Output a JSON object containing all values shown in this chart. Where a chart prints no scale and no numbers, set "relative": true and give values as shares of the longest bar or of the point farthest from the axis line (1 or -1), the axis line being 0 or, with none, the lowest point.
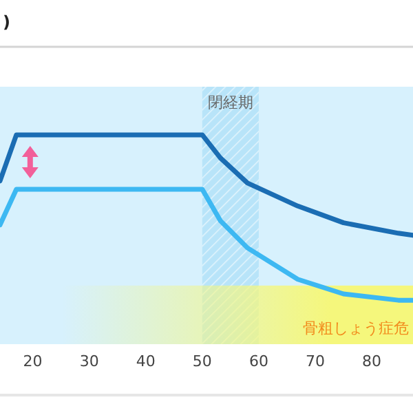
{
  "chart_data": {
    "type": "line",
    "title": ")",
    "relative": true,
    "x": [
      14.2,
      17.1,
      50,
      53.2,
      58,
      66.9,
      75,
      84.7,
      87.3
    ],
    "series": [
      {
        "color": "#1b6db3",
        "values": [
          0.78,
          1,
          1,
          0.89,
          0.77,
          0.66,
          0.58,
          0.53,
          0.52
        ]
      },
      {
        "color": "#3db8f2",
        "values": [
          0.57,
          0.74,
          0.74,
          0.59,
          0.46,
          0.31,
          0.24,
          0.21,
          0.21
        ]
      }
    ],
    "xlim": [
      14.2,
      87.3
    ],
    "xticks": [
      20,
      30,
      40,
      50,
      60,
      70,
      80
    ],
    "bands": [
      {
        "axis": "x",
        "from": 50,
        "to": 60,
        "label": "閉経期",
        "color": "#9fd8f5"
      },
      {
        "axis": "y",
        "from": 0,
        "to": 0.28,
        "label": "骨粗しょう症危",
        "color": "#f5f77c"
      }
    ],
    "marker": "none",
    "line_style": "solid"
  }
}
